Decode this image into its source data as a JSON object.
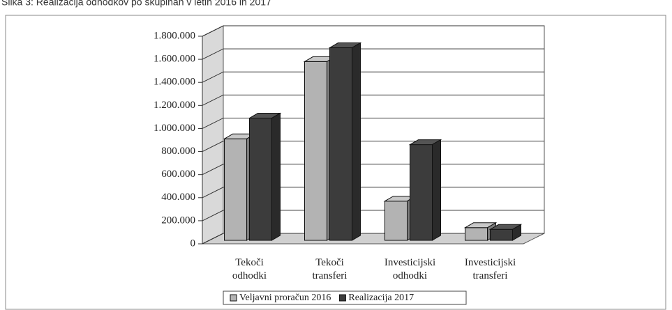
{
  "chart_data": {
    "type": "bar3d",
    "title": "Slika 3: Realizacija odhodkov po skupinah v letih 2016 in 2017",
    "categories": [
      [
        "Tekoči",
        "odhodki"
      ],
      [
        "Tekoči",
        "transferi"
      ],
      [
        "Investicijski",
        "odhodki"
      ],
      [
        "Investicijski",
        "transferi"
      ]
    ],
    "series": [
      {
        "name": "Veljavni proračun 2016",
        "color": "#b3b3b3",
        "values": [
          880000,
          1550000,
          340000,
          110000
        ]
      },
      {
        "name": "Realizacija 2017",
        "color": "#3c3c3c",
        "values": [
          1060000,
          1670000,
          830000,
          95000
        ]
      }
    ],
    "ylim": [
      0,
      1800000
    ],
    "yticks": [
      {
        "value": 0,
        "label": "0"
      },
      {
        "value": 200000,
        "label": "200.000"
      },
      {
        "value": 400000,
        "label": "400.000"
      },
      {
        "value": 600000,
        "label": "600.000"
      },
      {
        "value": 800000,
        "label": "800.000"
      },
      {
        "value": 1000000,
        "label": "1.000.000"
      },
      {
        "value": 1200000,
        "label": "1.200.000"
      },
      {
        "value": 1400000,
        "label": "1.400.000"
      },
      {
        "value": 1600000,
        "label": "1.600.000"
      },
      {
        "value": 1800000,
        "label": "1.800.000"
      }
    ],
    "grid": true,
    "legend": "bottom"
  }
}
